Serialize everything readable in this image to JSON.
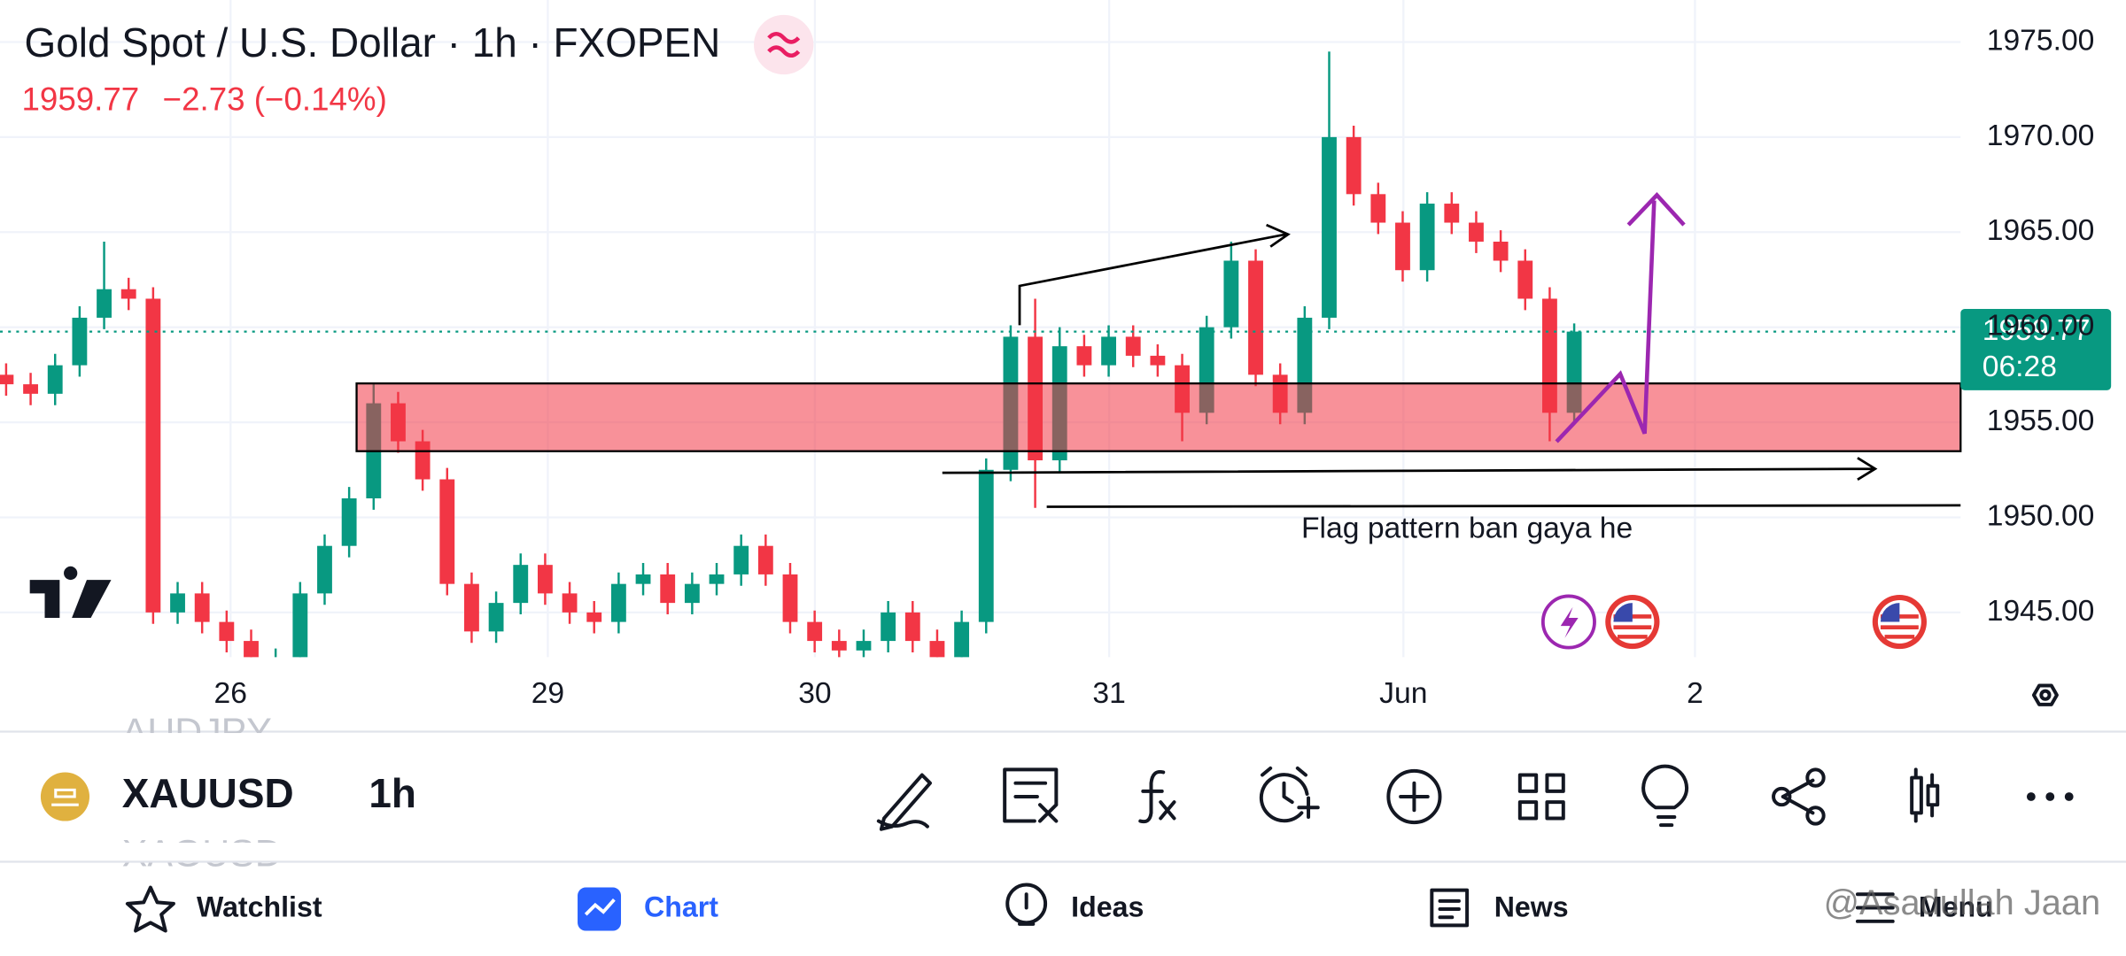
{
  "header": {
    "title": "Gold Spot / U.S. Dollar · 1h · FXOPEN",
    "change": "−2.73 (−0.14%)"
  },
  "chart_data": {
    "type": "candlestick",
    "x": [
      0,
      1,
      2,
      3,
      4,
      5,
      6,
      7,
      8,
      9,
      10,
      11,
      12,
      13,
      14,
      15,
      16,
      17,
      18,
      19,
      20,
      21,
      22,
      23,
      24,
      25,
      26,
      27,
      28,
      29,
      30,
      31,
      32,
      33,
      34,
      35,
      36,
      37,
      38,
      39,
      40,
      41,
      42,
      43,
      44,
      45,
      46,
      47,
      48,
      49,
      50,
      51,
      52,
      53,
      54,
      55,
      56,
      57,
      58,
      59,
      60,
      61,
      62,
      63,
      64
    ],
    "open": [
      1957.5,
      1957.0,
      1956.5,
      1958.0,
      1960.5,
      1962.0,
      1961.5,
      1945.0,
      1946.0,
      1944.5,
      1943.5,
      1942.0,
      1942.5,
      1946.0,
      1948.5,
      1951.0,
      1956.0,
      1954.0,
      1952.0,
      1946.5,
      1944.0,
      1945.5,
      1947.5,
      1946.0,
      1945.0,
      1944.5,
      1946.5,
      1947.0,
      1945.5,
      1946.5,
      1947.0,
      1948.5,
      1947.0,
      1944.5,
      1943.5,
      1943.0,
      1943.5,
      1945.0,
      1943.5,
      1942.5,
      1944.5,
      1952.5,
      1959.5,
      1953.0,
      1959.0,
      1958.0,
      1959.5,
      1958.5,
      1958.0,
      1955.5,
      1960.0,
      1963.5,
      1957.5,
      1955.5,
      1960.5,
      1970.0,
      1967.0,
      1965.5,
      1963.0,
      1966.5,
      1965.5,
      1964.5,
      1963.5,
      1961.5,
      1955.5
    ],
    "high": [
      1958.1,
      1957.6,
      1958.6,
      1961.1,
      1964.5,
      1962.6,
      1962.1,
      1946.6,
      1946.6,
      1945.1,
      1944.1,
      1943.1,
      1946.6,
      1949.1,
      1951.6,
      1957.0,
      1956.6,
      1954.6,
      1952.6,
      1947.1,
      1946.1,
      1948.1,
      1948.1,
      1946.6,
      1945.6,
      1947.1,
      1947.6,
      1947.6,
      1947.1,
      1947.6,
      1949.1,
      1949.1,
      1947.6,
      1945.1,
      1944.1,
      1944.1,
      1945.6,
      1945.6,
      1944.1,
      1945.1,
      1953.1,
      1960.1,
      1961.5,
      1960.0,
      1959.6,
      1960.1,
      1960.1,
      1959.1,
      1958.6,
      1960.6,
      1964.5,
      1964.1,
      1958.1,
      1961.1,
      1974.5,
      1970.6,
      1967.6,
      1966.1,
      1967.1,
      1967.1,
      1966.1,
      1965.1,
      1964.1,
      1962.1,
      1960.2
    ],
    "low": [
      1956.4,
      1955.9,
      1955.9,
      1957.4,
      1959.9,
      1960.9,
      1944.4,
      1944.4,
      1943.9,
      1942.9,
      1941.4,
      1941.4,
      1941.9,
      1945.4,
      1947.9,
      1950.4,
      1953.4,
      1951.4,
      1945.9,
      1943.4,
      1943.4,
      1944.9,
      1945.4,
      1944.4,
      1943.9,
      1943.9,
      1945.9,
      1944.9,
      1944.9,
      1945.9,
      1946.4,
      1946.4,
      1943.9,
      1942.9,
      1942.4,
      1942.4,
      1942.9,
      1942.9,
      1941.9,
      1941.9,
      1943.9,
      1951.9,
      1950.5,
      1952.4,
      1957.4,
      1957.4,
      1957.9,
      1957.4,
      1954.0,
      1954.9,
      1959.4,
      1956.9,
      1954.9,
      1954.9,
      1959.9,
      1966.4,
      1964.9,
      1962.4,
      1962.4,
      1964.9,
      1963.9,
      1962.9,
      1960.9,
      1954.0,
      1954.9
    ],
    "close": [
      1957.0,
      1956.5,
      1958.0,
      1960.5,
      1962.0,
      1961.5,
      1945.0,
      1946.0,
      1944.5,
      1943.5,
      1942.0,
      1942.5,
      1946.0,
      1948.5,
      1951.0,
      1956.0,
      1954.0,
      1952.0,
      1946.5,
      1944.0,
      1945.5,
      1947.5,
      1946.0,
      1945.0,
      1944.5,
      1946.5,
      1947.0,
      1945.5,
      1946.5,
      1947.0,
      1948.5,
      1947.0,
      1944.5,
      1943.5,
      1943.0,
      1943.5,
      1945.0,
      1943.5,
      1942.5,
      1944.5,
      1952.5,
      1959.5,
      1953.0,
      1959.0,
      1958.0,
      1959.5,
      1958.5,
      1958.0,
      1955.5,
      1960.0,
      1963.5,
      1957.5,
      1955.5,
      1960.5,
      1970.0,
      1967.0,
      1965.5,
      1963.0,
      1966.5,
      1965.5,
      1964.5,
      1963.5,
      1961.5,
      1955.5,
      1959.77
    ],
    "up_color": "#089981",
    "down_color": "#f23645",
    "xlim": [
      -0.25,
      79.77
    ],
    "xticks": [
      {
        "value": 9.16,
        "label": "26"
      },
      {
        "value": 22.11,
        "label": "29"
      },
      {
        "value": 33.01,
        "label": "30"
      },
      {
        "value": 45.02,
        "label": "31"
      },
      {
        "value": 57.03,
        "label": "Jun"
      },
      {
        "value": 68.93,
        "label": "2"
      }
    ],
    "ylim": [
      1942.65,
      1977.21
    ],
    "yticks": [
      {
        "value": 1945,
        "label": "1945.00"
      },
      {
        "value": 1950,
        "label": "1950.00"
      },
      {
        "value": 1955,
        "label": "1955.00"
      },
      {
        "value": 1960,
        "label": "1960.00"
      },
      {
        "value": 1965,
        "label": "1965.00"
      },
      {
        "value": 1970,
        "label": "1970.00"
      },
      {
        "value": 1975,
        "label": "1975.00"
      }
    ],
    "grid": true,
    "annotation": "Flag pattern ban gaya he",
    "countdown": "06:28"
  },
  "symbol_bar": {
    "symbol": "XAUUSD",
    "interval": "1h",
    "previous_symbol": "AUDJPY",
    "next_symbol": "XAGUSD"
  },
  "nav": [
    "Watchlist",
    "Chart",
    "Ideas",
    "News",
    "Menu"
  ],
  "watermark": "@Asadullah Jaan"
}
